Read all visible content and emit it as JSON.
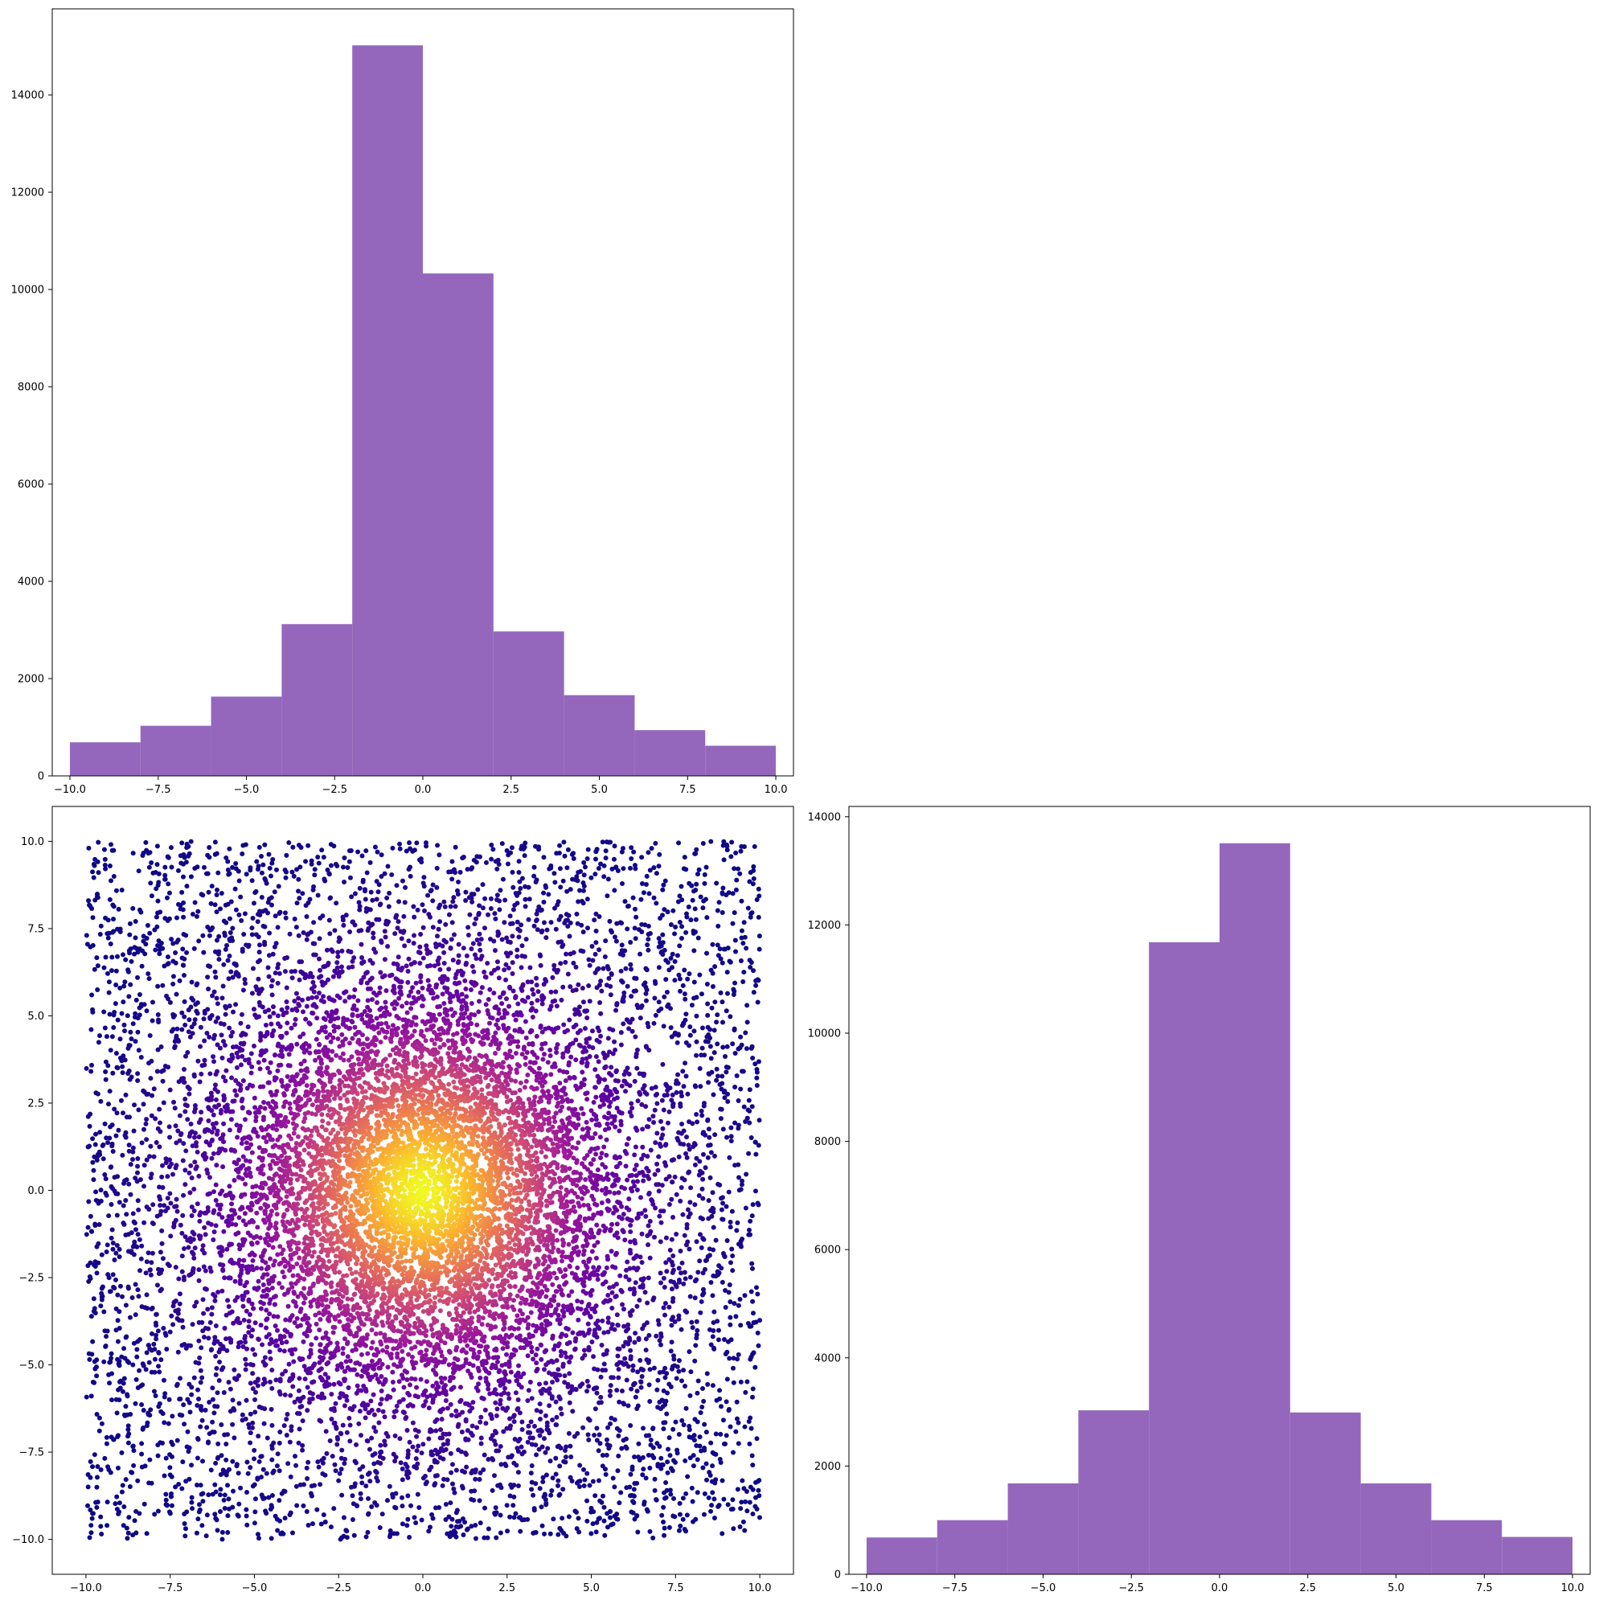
{
  "figure": {
    "background": "#ffffff"
  },
  "chart_data": [
    {
      "id": "hist-x",
      "type": "bar",
      "subtype": "histogram",
      "color": "#9467bd",
      "bin_edges": [
        -10,
        -8,
        -6,
        -4,
        -2,
        0,
        2,
        4,
        6,
        8,
        10
      ],
      "values": [
        690,
        1030,
        1630,
        3120,
        15020,
        10330,
        2970,
        1660,
        940,
        620
      ],
      "xlim": [
        -10.5,
        10.5
      ],
      "ylim": [
        0,
        15770
      ],
      "xticks": [
        -10,
        -7.5,
        -5,
        -2.5,
        0,
        2.5,
        5,
        7.5,
        10
      ],
      "xtick_labels": [
        "−10.0",
        "−7.5",
        "−5.0",
        "−2.5",
        "0.0",
        "2.5",
        "5.0",
        "7.5",
        "10.0"
      ],
      "yticks": [
        0,
        2000,
        4000,
        6000,
        8000,
        10000,
        12000,
        14000
      ],
      "ytick_labels": [
        "0",
        "2000",
        "4000",
        "6000",
        "8000",
        "10000",
        "12000",
        "14000"
      ],
      "title": "",
      "xlabel": "",
      "ylabel": "",
      "grid": false,
      "legend": "none"
    },
    {
      "id": "scatter-xy",
      "type": "scatter",
      "colormap": "plasma",
      "colormap_colors": [
        "#0d0887",
        "#5b02a3",
        "#9a179b",
        "#cb4678",
        "#eb7852",
        "#fbb32f",
        "#f0f921"
      ],
      "color_by": "density",
      "distribution": {
        "points": 12000,
        "x_range": [
          -10,
          10
        ],
        "y_range": [
          -10,
          10
        ],
        "center": [
          0,
          0
        ],
        "note": "points concentrated radially around the origin, sparse towards the square edges"
      },
      "xlim": [
        -11,
        11
      ],
      "ylim": [
        -11,
        11
      ],
      "xticks": [
        -10,
        -7.5,
        -5,
        -2.5,
        0,
        2.5,
        5,
        7.5,
        10
      ],
      "xtick_labels": [
        "−10.0",
        "−7.5",
        "−5.0",
        "−2.5",
        "0.0",
        "2.5",
        "5.0",
        "7.5",
        "10.0"
      ],
      "yticks": [
        -10,
        -7.5,
        -5,
        -2.5,
        0,
        2.5,
        5,
        7.5,
        10
      ],
      "ytick_labels": [
        "−10.0",
        "−7.5",
        "−5.0",
        "−2.5",
        "0.0",
        "2.5",
        "5.0",
        "7.5",
        "10.0"
      ],
      "title": "",
      "xlabel": "",
      "ylabel": "",
      "grid": false,
      "legend": "none"
    },
    {
      "id": "hist-y",
      "type": "bar",
      "subtype": "histogram",
      "color": "#9467bd",
      "bin_edges": [
        -10,
        -8,
        -6,
        -4,
        -2,
        0,
        2,
        4,
        6,
        8,
        10
      ],
      "values": [
        680,
        1000,
        1680,
        3030,
        11680,
        13510,
        2990,
        1680,
        1000,
        690
      ],
      "xlim": [
        -10.5,
        10.5
      ],
      "ylim": [
        0,
        14190
      ],
      "xticks": [
        -10,
        -7.5,
        -5,
        -2.5,
        0,
        2.5,
        5,
        7.5,
        10
      ],
      "xtick_labels": [
        "−10.0",
        "−7.5",
        "−5.0",
        "−2.5",
        "0.0",
        "2.5",
        "5.0",
        "7.5",
        "10.0"
      ],
      "yticks": [
        0,
        2000,
        4000,
        6000,
        8000,
        10000,
        12000,
        14000
      ],
      "ytick_labels": [
        "0",
        "2000",
        "4000",
        "6000",
        "8000",
        "10000",
        "12000",
        "14000"
      ],
      "title": "",
      "xlabel": "",
      "ylabel": "",
      "grid": false,
      "legend": "none"
    }
  ]
}
